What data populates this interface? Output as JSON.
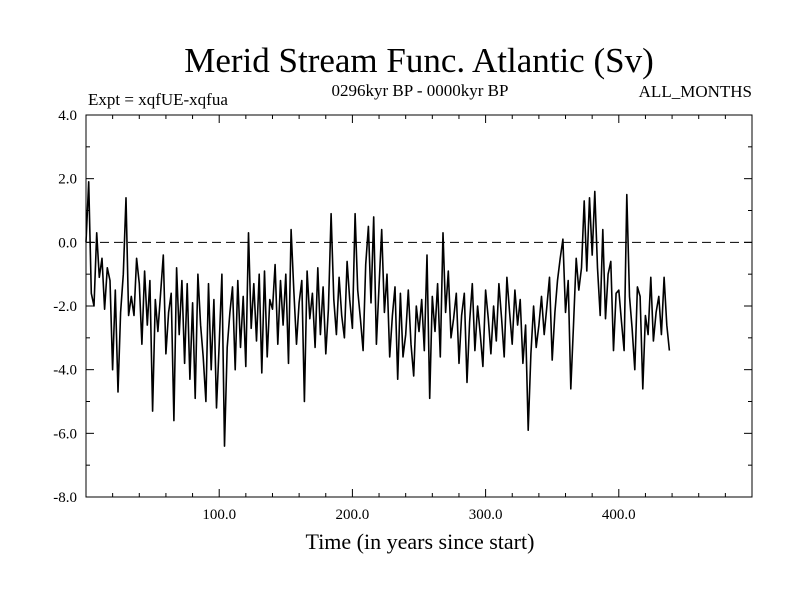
{
  "chart_data": {
    "type": "line",
    "title": "Merid Stream Func. Atlantic (Sv)",
    "subtitle_left": "Expt = xqfUE-xqfua",
    "subtitle_center": "0296kyr BP - 0000kyr BP",
    "subtitle_right": "ALL_MONTHS",
    "xlabel": "Time (in years since start)",
    "ylabel": "",
    "xlim": [
      0,
      500
    ],
    "ylim": [
      -8.0,
      4.0
    ],
    "x_ticks": [
      100,
      200,
      300,
      400
    ],
    "x_tick_labels": [
      "100.0",
      "200.0",
      "300.0",
      "400.0"
    ],
    "y_ticks": [
      4.0,
      2.0,
      0.0,
      -2.0,
      -4.0,
      -6.0,
      -8.0
    ],
    "y_tick_labels": [
      "4.0",
      "2.0",
      "0.0",
      "-2.0",
      "-4.0",
      "-6.0",
      "-8.0"
    ],
    "reference_line": {
      "y": 0.0,
      "style": "dashed"
    },
    "series": [
      {
        "name": "Merid Stream Func. Atlantic",
        "x_start": 0,
        "x_step": 2,
        "values": [
          0.0,
          1.9,
          -1.6,
          -2.0,
          0.3,
          -1.1,
          -0.5,
          -2.1,
          -0.8,
          -1.2,
          -4.0,
          -1.5,
          -4.7,
          -2.2,
          -1.0,
          1.4,
          -2.3,
          -1.7,
          -2.3,
          -0.5,
          -1.3,
          -3.2,
          -0.9,
          -2.6,
          -1.2,
          -5.3,
          -1.8,
          -2.8,
          -1.6,
          -0.4,
          -3.5,
          -2.2,
          -1.6,
          -5.6,
          -0.8,
          -2.9,
          -1.2,
          -3.8,
          -1.3,
          -4.3,
          -1.9,
          -4.9,
          -1.0,
          -2.6,
          -3.6,
          -5.0,
          -1.3,
          -4.0,
          -1.8,
          -5.2,
          -3.2,
          -1.0,
          -6.4,
          -3.3,
          -2.2,
          -1.4,
          -4.0,
          -1.2,
          -3.3,
          -1.7,
          -3.9,
          0.3,
          -2.7,
          -1.3,
          -3.1,
          -1.0,
          -4.1,
          -0.9,
          -3.6,
          -1.8,
          -2.1,
          -0.7,
          -3.2,
          -1.2,
          -2.6,
          -1.0,
          -3.8,
          0.4,
          -1.5,
          -3.2,
          -1.9,
          -1.2,
          -5.0,
          -0.9,
          -2.4,
          -1.6,
          -3.3,
          -0.8,
          -2.9,
          -1.4,
          -3.5,
          -2.1,
          0.9,
          -1.8,
          -2.9,
          -1.1,
          -2.3,
          -3.0,
          -0.6,
          -1.8,
          -2.7,
          0.9,
          -1.5,
          -2.4,
          -3.4,
          -0.7,
          0.5,
          -1.9,
          0.8,
          -3.2,
          -1.4,
          0.4,
          -2.2,
          -1.0,
          -3.6,
          -2.3,
          -1.4,
          -4.3,
          -1.6,
          -3.6,
          -2.9,
          -1.5,
          -3.2,
          -4.2,
          -2.0,
          -2.8,
          -1.8,
          -3.4,
          -0.4,
          -4.9,
          -1.7,
          -2.8,
          -1.3,
          -3.6,
          0.3,
          -2.2,
          -0.9,
          -3.0,
          -2.4,
          -1.6,
          -3.8,
          -2.3,
          -1.6,
          -4.4,
          -2.5,
          -1.3,
          -3.4,
          -2.0,
          -2.9,
          -3.9,
          -1.5,
          -2.4,
          -3.5,
          -2.0,
          -3.1,
          -1.3,
          -2.4,
          -3.6,
          -1.1,
          -2.2,
          -3.2,
          -1.5,
          -2.6,
          -1.8,
          -3.8,
          -2.6,
          -5.9,
          -3.5,
          -2.0,
          -3.3,
          -2.6,
          -1.7,
          -2.9,
          -2.0,
          -1.1,
          -3.7,
          -2.2,
          -1.2,
          -0.5,
          0.1,
          -2.2,
          -1.2,
          -4.6,
          -2.6,
          -0.5,
          -1.5,
          -0.8,
          1.3,
          -0.9,
          1.4,
          -0.4,
          1.6,
          -0.8,
          -2.3,
          0.4,
          -2.4,
          -1.0,
          -0.6,
          -3.4,
          -1.6,
          -1.5,
          -2.5,
          -3.4,
          1.5,
          -1.7,
          -2.7,
          -4.0,
          -1.4,
          -1.7,
          -4.6,
          -2.3,
          -2.9,
          -1.1,
          -3.1,
          -2.2,
          -1.7,
          -2.9,
          -1.1,
          -2.6,
          -3.4
        ],
        "color": "#000000"
      }
    ]
  }
}
